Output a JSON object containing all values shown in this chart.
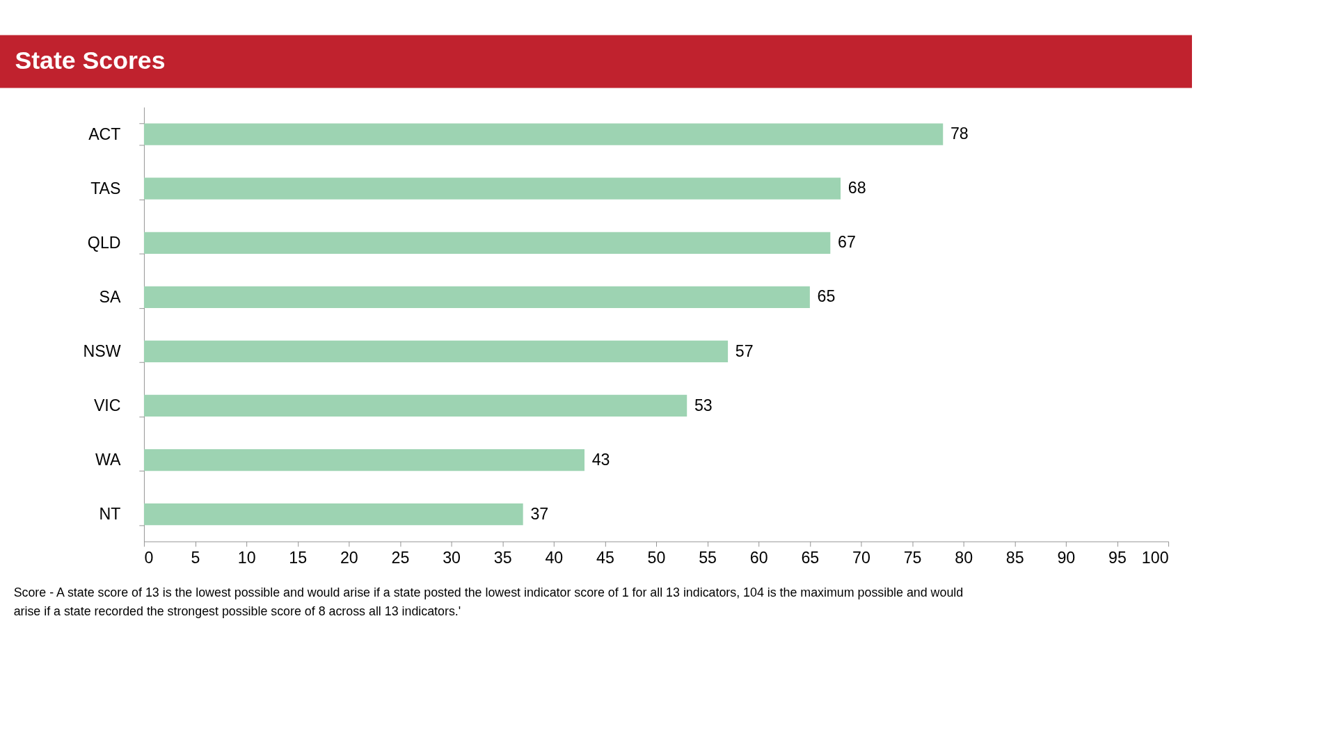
{
  "chart_data": {
    "type": "bar",
    "orientation": "horizontal",
    "title": "State Scores",
    "categories": [
      "ACT",
      "TAS",
      "QLD",
      "SA",
      "NSW",
      "VIC",
      "WA",
      "NT"
    ],
    "values": [
      78,
      68,
      67,
      65,
      57,
      53,
      43,
      37
    ],
    "color": "#9dd3b2",
    "xlim": [
      0,
      100
    ],
    "xticks": [
      0,
      5,
      10,
      15,
      20,
      25,
      30,
      35,
      40,
      45,
      50,
      55,
      60,
      65,
      70,
      75,
      80,
      85,
      90,
      95,
      100
    ],
    "data_labels": true,
    "grid": false,
    "annotations": [
      "Score  - A state score of 13 is the lowest possible and would arise if a state posted the lowest indicator score of 1 for all 13 indicators, 104 is the maximum possible and would arise if a state recorded the strongest possible score of 8 across all 13 indicators.'"
    ]
  }
}
